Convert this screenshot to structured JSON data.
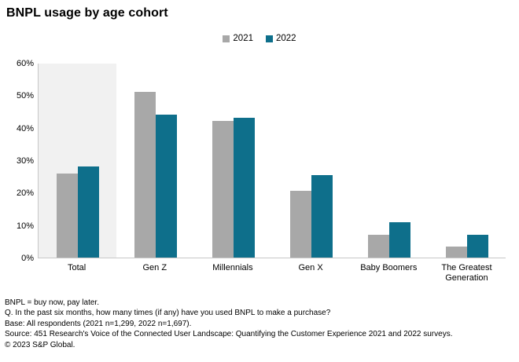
{
  "title": "BNPL usage by age cohort",
  "chart_data": {
    "type": "bar",
    "title": "BNPL usage by age cohort",
    "categories": [
      "Total",
      "Gen Z",
      "Millennials",
      "Gen X",
      "Baby Boomers",
      "The Greatest Generation"
    ],
    "series": [
      {
        "name": "2021",
        "color": "#a8a8a8",
        "values": [
          26,
          51,
          42,
          20.5,
          7,
          3.5
        ]
      },
      {
        "name": "2022",
        "color": "#0e6f8b",
        "values": [
          28,
          44,
          43,
          25.5,
          11,
          7
        ]
      }
    ],
    "ylim": [
      0,
      60
    ],
    "ytick_step": 10,
    "ytick_labels": [
      "0%",
      "10%",
      "20%",
      "30%",
      "40%",
      "50%",
      "60%"
    ],
    "ylabel": "",
    "xlabel": "",
    "grid": false,
    "legend_position": "top-center",
    "highlighted_category": "Total",
    "highlight_color": "#f1f1f1",
    "axis_line_color": "#c8c8c8"
  },
  "footnotes": [
    "BNPL = buy now, pay later.",
    "Q. In the past six months, how many times (if any) have you used BNPL to make a purchase?",
    "Base: All respondents (2021 n=1,299, 2022 n=1,697).",
    "Source: 451 Research's Voice of the Connected User Landscape: Quantifying the Customer Experience 2021 and 2022 surveys.",
    "© 2023 S&P Global."
  ]
}
